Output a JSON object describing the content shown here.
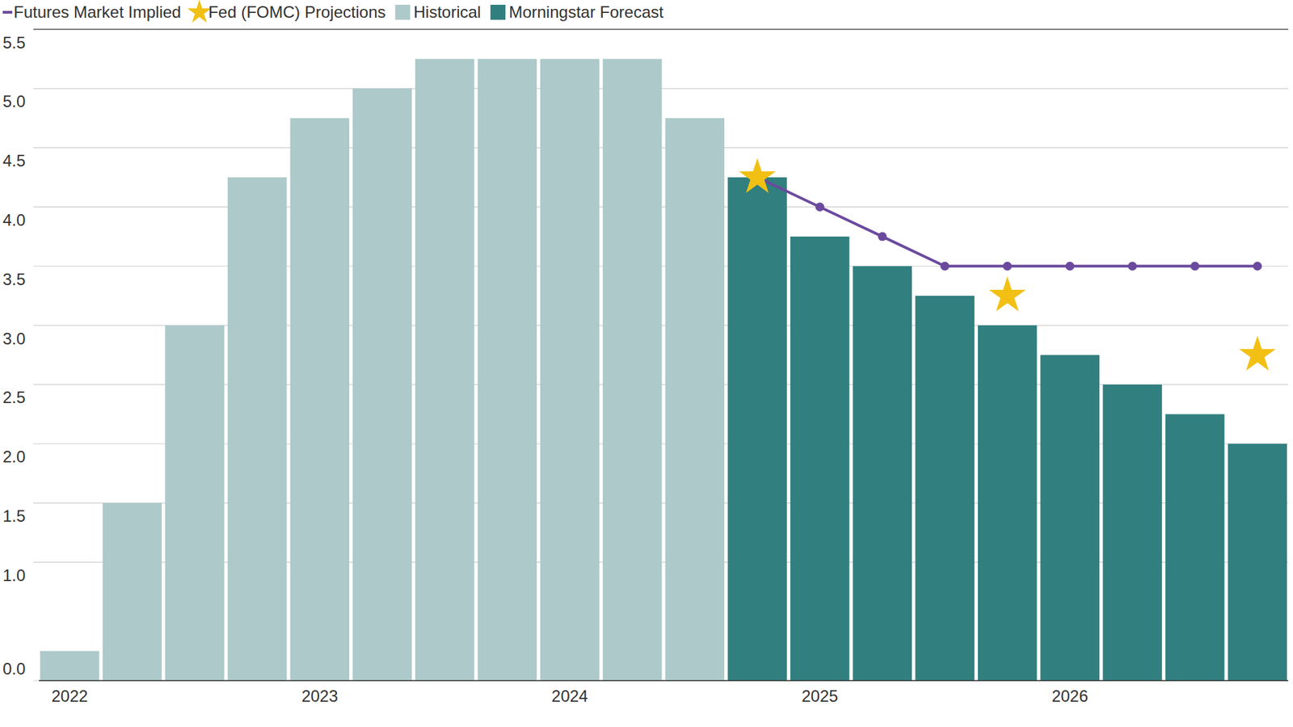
{
  "chart_data": {
    "type": "bar",
    "categories": [
      "2022",
      null,
      null,
      null,
      "2023",
      null,
      null,
      null,
      "2024",
      null,
      null,
      null,
      "2025",
      null,
      null,
      null,
      "2026",
      null,
      null,
      null
    ],
    "series": [
      {
        "name": "Historical",
        "type": "bar",
        "color": "#adc9c9",
        "values": [
          0.25,
          1.5,
          3.0,
          4.25,
          4.75,
          5.0,
          5.25,
          5.25,
          5.25,
          5.25,
          4.75,
          null,
          null,
          null,
          null,
          null,
          null,
          null,
          null,
          null
        ]
      },
      {
        "name": "Morningstar Forecast",
        "type": "bar",
        "color": "#317f7f",
        "values": [
          null,
          null,
          null,
          null,
          null,
          null,
          null,
          null,
          null,
          null,
          null,
          4.25,
          3.75,
          3.5,
          3.25,
          3.0,
          2.75,
          2.5,
          2.25,
          2.0
        ]
      },
      {
        "name": "Futures Market Implied",
        "type": "line",
        "color": "#6b4a9e",
        "marker": "circle",
        "values": [
          null,
          null,
          null,
          null,
          null,
          null,
          null,
          null,
          null,
          null,
          null,
          4.25,
          4.0,
          3.75,
          3.5,
          3.5,
          3.5,
          3.5,
          3.5,
          3.5
        ]
      },
      {
        "name": "Fed (FOMC) Projections",
        "type": "scatter",
        "color": "#f2c014",
        "marker": "star",
        "values": [
          null,
          null,
          null,
          null,
          null,
          null,
          null,
          null,
          null,
          null,
          null,
          4.25,
          null,
          null,
          null,
          3.25,
          null,
          null,
          null,
          2.75
        ]
      }
    ],
    "legend_order": [
      2,
      3,
      0,
      1
    ],
    "ylim": [
      0,
      5.5
    ],
    "yticks": [
      {
        "value": 0,
        "label": "0.0"
      },
      {
        "value": 1,
        "label": "1.0"
      },
      1.5,
      {
        "value": 2,
        "label": "2.0"
      },
      2.5,
      {
        "value": 3,
        "label": "3.0"
      },
      3.5,
      {
        "value": 4,
        "label": "4.0"
      },
      4.5,
      {
        "value": 5,
        "label": "5.0"
      },
      5.5
    ],
    "grid": true,
    "legend": "top-left"
  }
}
